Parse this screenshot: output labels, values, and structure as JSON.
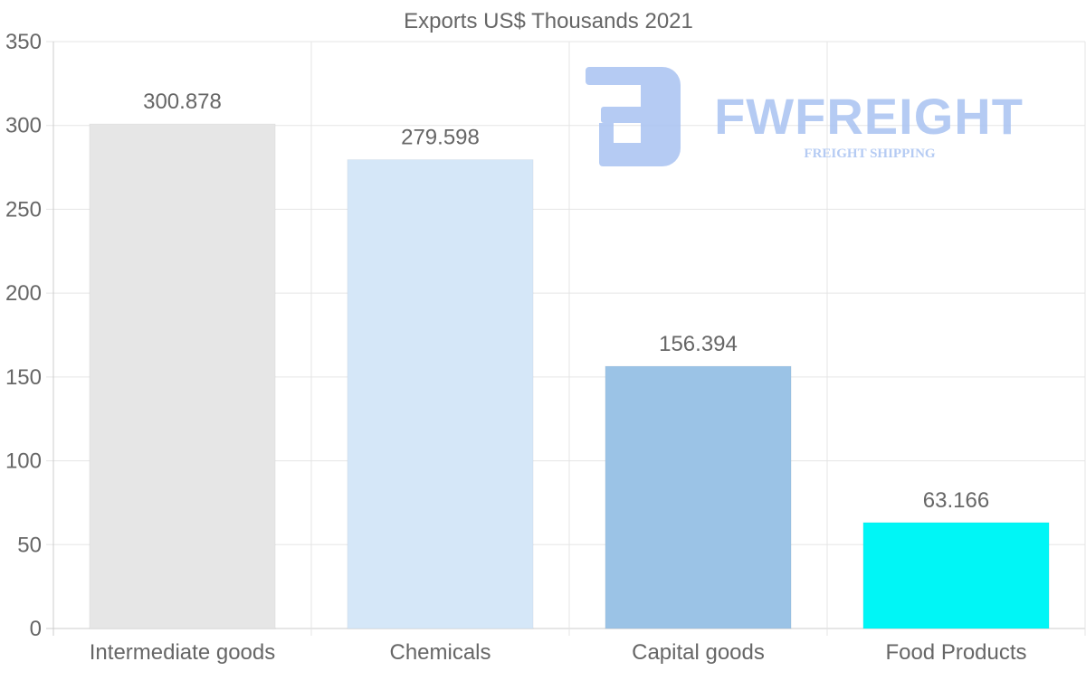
{
  "chart_data": {
    "type": "bar",
    "title": "Exports US$ Thousands 2021",
    "categories": [
      "Intermediate goods",
      "Chemicals",
      "Capital goods",
      "Food Products"
    ],
    "values": [
      300.878,
      279.598,
      156.394,
      63.166
    ],
    "value_labels": [
      "300.878",
      "279.598",
      "156.394",
      "63.166"
    ],
    "bar_colors": [
      "#e6e6e6",
      "#d5e7f8",
      "#9bc3e6",
      "#00f6f6"
    ],
    "ylim": [
      0,
      350
    ],
    "yticks": [
      0,
      50,
      100,
      150,
      200,
      250,
      300,
      350
    ],
    "xlabel": "",
    "ylabel": "",
    "grid": true,
    "legend": "none"
  },
  "watermark": {
    "brand": "FWFREIGHT",
    "tagline": "FREIGHT SHIPPING",
    "color": "#a9c3f2"
  },
  "colors": {
    "text": "#666666",
    "grid": "#e5e5e5",
    "axis": "#cccccc"
  }
}
